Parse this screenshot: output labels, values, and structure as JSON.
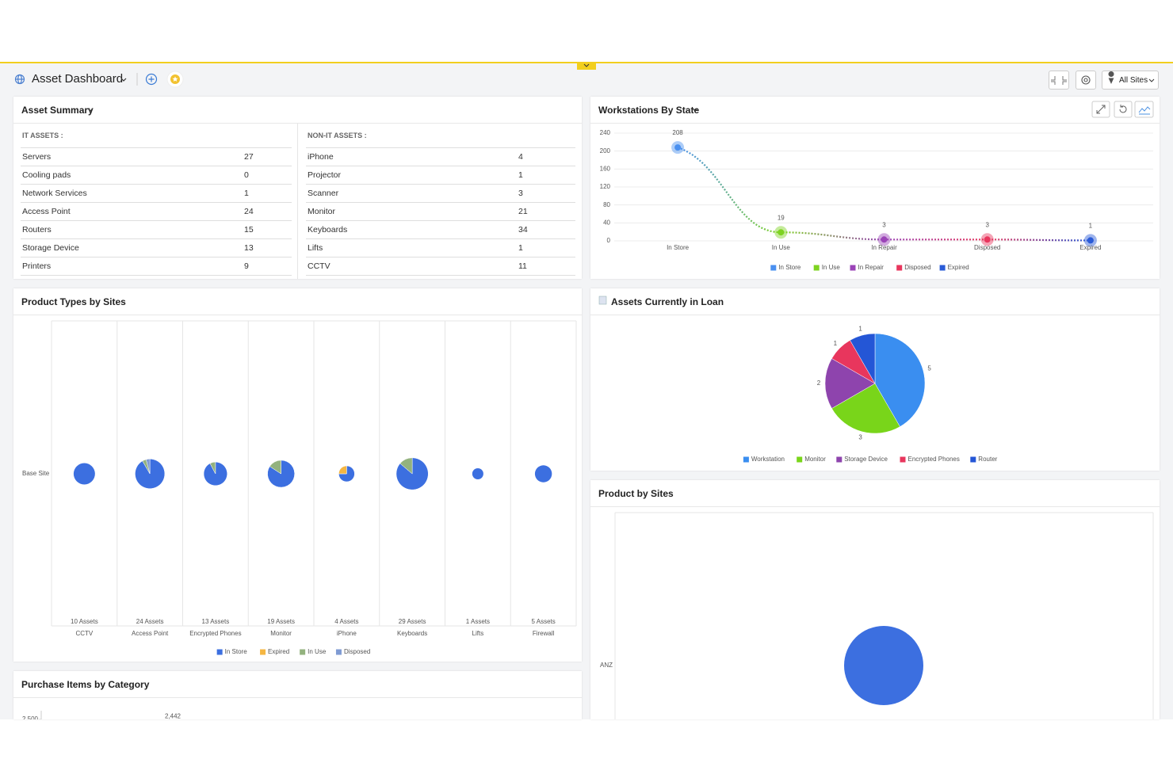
{
  "header": {
    "title": "Asset Dashboard",
    "site_filter": "All Sites"
  },
  "asset_summary": {
    "title": "Asset Summary",
    "it_assets": {
      "heading": "IT ASSETS :",
      "rows": [
        [
          "Servers",
          27
        ],
        [
          "Cooling pads",
          0
        ],
        [
          "Network Services",
          1
        ],
        [
          "Access Point",
          24
        ],
        [
          "Routers",
          15
        ],
        [
          "Storage Device",
          13
        ],
        [
          "Printers",
          9
        ]
      ]
    },
    "non_it_assets": {
      "heading": "NON-IT ASSETS :",
      "rows": [
        [
          "iPhone",
          4
        ],
        [
          "Projector",
          1
        ],
        [
          "Scanner",
          3
        ],
        [
          "Monitor",
          21
        ],
        [
          "Keyboards",
          34
        ],
        [
          "Lifts",
          1
        ],
        [
          "CCTV",
          11
        ]
      ]
    }
  },
  "chart_data": [
    {
      "type": "line",
      "title": "Workstations By State",
      "categories": [
        "In Store",
        "In Use",
        "In Repair",
        "Disposed",
        "Expired"
      ],
      "values": [
        208,
        19,
        3,
        3,
        1
      ],
      "colors": [
        "#4a90f0",
        "#7ed321",
        "#9b44b8",
        "#e8365d",
        "#2a5bd7"
      ],
      "ylim": [
        0,
        240
      ],
      "yticks": [
        0,
        40,
        80,
        120,
        160,
        200,
        240
      ],
      "grid": true,
      "legend": "bottom"
    },
    {
      "type": "pie-bubble",
      "title": "Product Types by Sites",
      "rows": [
        "Base Site"
      ],
      "categories": [
        "CCTV",
        "Access Point",
        "Encrypted Phones",
        "Monitor",
        "iPhone",
        "Keyboards",
        "Lifts",
        "Firewall"
      ],
      "column_labels": [
        "10 Assets",
        "24 Assets",
        "13 Assets",
        "19 Assets",
        "4 Assets",
        "29 Assets",
        "1 Assets",
        "5 Assets"
      ],
      "series": [
        {
          "name": "In Store",
          "color": "#3c6fe0",
          "values": [
            10,
            22,
            12,
            16,
            3,
            25,
            1,
            5
          ]
        },
        {
          "name": "Expired",
          "color": "#f5b642",
          "values": [
            0,
            0,
            0,
            0,
            1,
            0,
            0,
            0
          ]
        },
        {
          "name": "In Use",
          "color": "#93b27e",
          "values": [
            0,
            1,
            1,
            3,
            0,
            4,
            0,
            0
          ]
        },
        {
          "name": "Disposed",
          "color": "#7f9bd3",
          "values": [
            0,
            1,
            0,
            0,
            0,
            0,
            0,
            0
          ]
        }
      ],
      "legend": "bottom"
    },
    {
      "type": "pie",
      "title": "Assets Currently in Loan",
      "categories": [
        "Workstation",
        "Monitor",
        "Storage Device",
        "Encrypted Phones",
        "Router"
      ],
      "values": [
        5,
        3,
        2,
        1,
        1
      ],
      "colors": [
        "#3a8ef0",
        "#79d51a",
        "#8e44ad",
        "#e8365d",
        "#2456d6"
      ],
      "legend": "bottom"
    },
    {
      "type": "pie-bubble",
      "title": "Product by Sites",
      "rows": [
        "ANZ"
      ],
      "series": [
        {
          "color": "#3c6fe0",
          "values": [
            1
          ]
        }
      ]
    },
    {
      "type": "bar",
      "title": "Purchase Items by Category",
      "values": [
        2442
      ],
      "value_labels": [
        "2,442"
      ],
      "color": "#3c6fe0",
      "ylim": [
        0,
        3000
      ],
      "yticks": [
        {
          "value": 2500,
          "label": "2,500"
        }
      ]
    }
  ]
}
